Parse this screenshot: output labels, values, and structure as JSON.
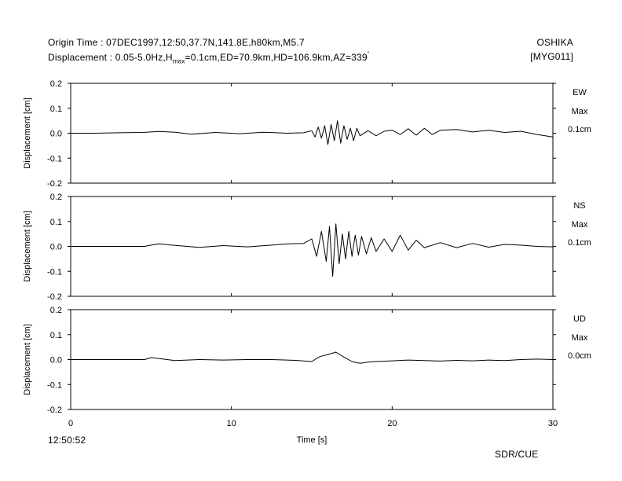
{
  "header": {
    "origin_line": "Origin Time : 07DEC1997,12:50,37.7N,141.8E,h80km,M5.7",
    "displacement_prefix": "Displacement : 0.05-5.0Hz,H",
    "hmax_subscript": "max",
    "displacement_suffix": "=0.1cm,ED=70.9km,HD=106.9km,AZ=339",
    "degree_mark": "˚",
    "station_name": "OSHIKA",
    "station_code": "[MYG011]"
  },
  "footer": {
    "start_time": "12:50:52",
    "credit": "SDR/CUE"
  },
  "chart_data": {
    "type": "line",
    "xlabel": "Time [s]",
    "xlim": [
      0,
      30
    ],
    "x_ticks": [
      0,
      10,
      20,
      30
    ],
    "ylim": [
      -0.2,
      0.2
    ],
    "y_ticks": [
      0.2,
      0.1,
      0.0,
      -0.1,
      -0.2
    ],
    "y_tick_labels": [
      "0.2",
      "0.1",
      "0.0",
      "-0.1",
      "-0.2"
    ],
    "grid": false,
    "line_color": "#000000",
    "panels": [
      {
        "component": "EW",
        "max_label": "Max",
        "max_value": "0.1cm",
        "ylabel": "Displacement [cm]",
        "x": [
          0,
          1.5,
          3,
          4.5,
          5.5,
          6.5,
          7.5,
          9,
          10.5,
          12,
          13.5,
          14.5,
          15,
          15.2,
          15.4,
          15.6,
          15.8,
          16,
          16.2,
          16.4,
          16.6,
          16.8,
          17,
          17.2,
          17.4,
          17.6,
          17.8,
          18,
          18.5,
          19,
          19.5,
          20,
          20.5,
          21,
          21.5,
          22,
          22.5,
          23,
          24,
          25,
          26,
          27,
          28,
          29,
          30
        ],
        "y": [
          0.0,
          0.0,
          0.002,
          0.003,
          0.007,
          0.004,
          -0.004,
          0.003,
          -0.002,
          0.004,
          0.0,
          0.002,
          0.01,
          -0.015,
          0.025,
          -0.02,
          0.03,
          -0.045,
          0.035,
          -0.03,
          0.05,
          -0.04,
          0.03,
          -0.025,
          0.02,
          -0.03,
          0.02,
          -0.01,
          0.01,
          -0.01,
          0.008,
          0.012,
          -0.005,
          0.018,
          -0.008,
          0.02,
          -0.005,
          0.012,
          0.015,
          0.005,
          0.012,
          0.003,
          0.008,
          -0.005,
          -0.015
        ]
      },
      {
        "component": "NS",
        "max_label": "Max",
        "max_value": "0.1cm",
        "ylabel": "Displacement [cm]",
        "x": [
          0,
          2,
          4.6,
          5,
          5.5,
          6.5,
          8,
          9.5,
          11,
          12.5,
          13.5,
          14.5,
          15,
          15.3,
          15.6,
          15.9,
          16.1,
          16.3,
          16.5,
          16.7,
          16.9,
          17.1,
          17.3,
          17.5,
          17.7,
          17.9,
          18.1,
          18.4,
          18.7,
          19,
          19.5,
          20,
          20.5,
          21,
          21.5,
          22,
          23,
          24,
          25,
          26,
          27,
          28,
          29,
          30
        ],
        "y": [
          0.0,
          0.0,
          0.0,
          0.005,
          0.01,
          0.004,
          -0.004,
          0.003,
          -0.002,
          0.005,
          0.01,
          0.012,
          0.03,
          -0.04,
          0.06,
          -0.06,
          0.08,
          -0.12,
          0.09,
          -0.07,
          0.05,
          -0.05,
          0.06,
          -0.04,
          0.045,
          -0.035,
          0.04,
          -0.03,
          0.035,
          -0.02,
          0.03,
          -0.02,
          0.045,
          -0.015,
          0.025,
          -0.005,
          0.015,
          -0.005,
          0.012,
          -0.003,
          0.008,
          0.005,
          0.0,
          -0.002
        ]
      },
      {
        "component": "UD",
        "max_label": "Max",
        "max_value": "0.0cm",
        "ylabel": "Displacement [cm]",
        "x": [
          0,
          2,
          4.6,
          5,
          5.5,
          6.5,
          8,
          9.5,
          11,
          12.5,
          14,
          15,
          15.5,
          16,
          16.5,
          17,
          17.5,
          18,
          18.5,
          19,
          20,
          21,
          22,
          23,
          24,
          25,
          26,
          27,
          28,
          29,
          30
        ],
        "y": [
          0.0,
          0.0,
          0.0,
          0.008,
          0.004,
          -0.004,
          0.0,
          -0.002,
          0.0,
          0.0,
          -0.003,
          -0.008,
          0.012,
          0.02,
          0.03,
          0.01,
          -0.008,
          -0.015,
          -0.01,
          -0.008,
          -0.005,
          -0.002,
          -0.004,
          -0.006,
          -0.003,
          -0.005,
          -0.002,
          -0.004,
          0.0,
          0.002,
          0.0
        ]
      }
    ]
  }
}
